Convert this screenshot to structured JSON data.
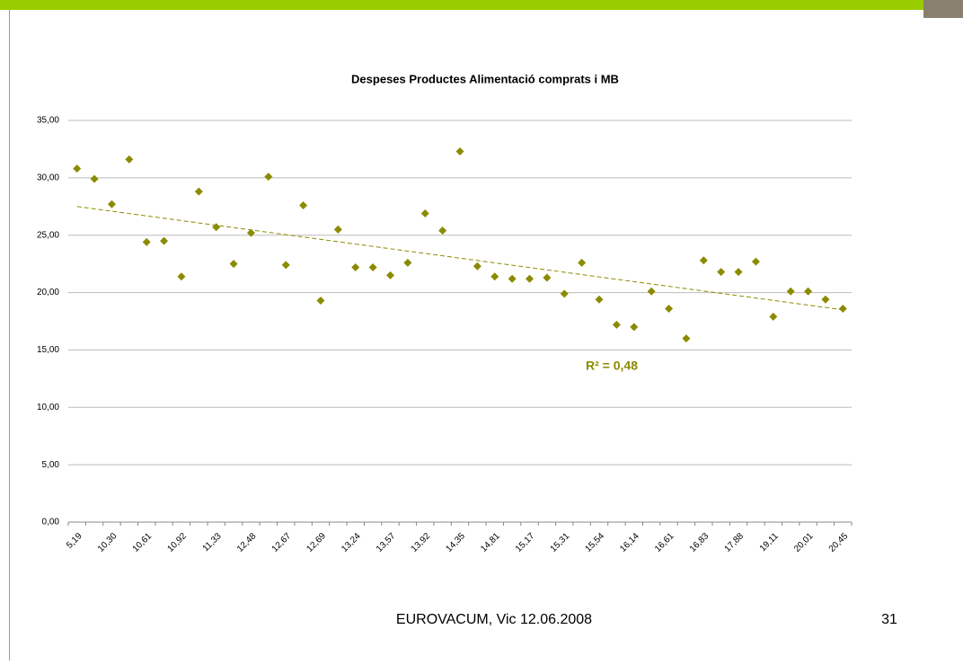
{
  "slide": {
    "footer": "EUROVACUM, Vic 12.06.2008",
    "page_number": "31"
  },
  "chart_data": {
    "type": "scatter",
    "title": "Despeses Productes Alimentació comprats i MB",
    "categories": [
      "5,19",
      null,
      "10,30",
      null,
      "10,61",
      null,
      "10,92",
      null,
      "11,33",
      null,
      "12,48",
      null,
      "12,67",
      null,
      "12,69",
      null,
      "13,24",
      null,
      "13,57",
      null,
      "13,92",
      null,
      "14,35",
      null,
      "14,81",
      null,
      "15,17",
      null,
      "15,31",
      null,
      "15,54",
      null,
      "16,14",
      null,
      "16,61",
      null,
      "16,83",
      null,
      "17,88",
      null,
      "19,11",
      null,
      "20,01",
      null,
      "20,45"
    ],
    "values": [
      30.8,
      29.9,
      27.7,
      31.6,
      24.4,
      24.5,
      21.4,
      28.8,
      25.7,
      22.5,
      25.2,
      30.1,
      22.4,
      27.6,
      19.3,
      25.5,
      22.2,
      22.2,
      21.5,
      22.6,
      26.9,
      25.4,
      32.3,
      22.3,
      21.4,
      21.2,
      21.2,
      21.3,
      19.9,
      22.6,
      19.4,
      17.2,
      17.0,
      20.1,
      18.6,
      16.0,
      22.8,
      21.8,
      21.8,
      22.7,
      17.9,
      20.1,
      20.1,
      19.4,
      18.6
    ],
    "color": "#8b8b00",
    "trendline": [
      27.5,
      18.5
    ],
    "annotation": "R² = 0,48",
    "ylim": [
      0,
      35
    ],
    "yticks": [
      {
        "value": 0,
        "label": "0,00"
      },
      {
        "value": 5,
        "label": "5,00"
      },
      {
        "value": 10,
        "label": "10,00"
      },
      {
        "value": 15,
        "label": "15,00"
      },
      {
        "value": 20,
        "label": "20,00"
      },
      {
        "value": 25,
        "label": "25,00"
      },
      {
        "value": 30,
        "label": "30,00"
      },
      {
        "value": 35,
        "label": "35,00"
      }
    ],
    "grid": true
  }
}
